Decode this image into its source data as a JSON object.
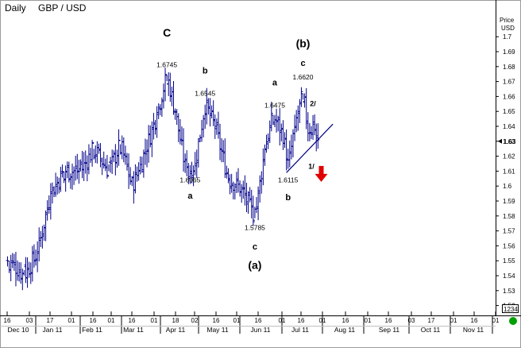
{
  "header": {
    "period": "Daily",
    "symbol": "GBP / USD"
  },
  "price_axis": {
    "title_line1": "Price",
    "title_line2": "USD",
    "last_value": "1.63",
    "bottom_box": "1234"
  },
  "colors": {
    "bars": "#00008b",
    "arrow": "#e00000",
    "status_dot": "#00a000",
    "trendline": "#000080"
  },
  "chart_data": {
    "type": "bar",
    "subtype": "ohlc",
    "ylim": [
      1.515,
      1.715
    ],
    "y_ticks": [
      "1.7",
      "1.69",
      "1.68",
      "1.67",
      "1.66",
      "1.65",
      "1.64",
      "1.63",
      "1.62",
      "1.61",
      "1.6",
      "1.59",
      "1.58",
      "1.57",
      "1.56",
      "1.55",
      "1.54",
      "1.53",
      "1.52"
    ],
    "x_day_ticks": [
      "16",
      "03",
      "17",
      "01",
      "16",
      "01",
      "16",
      "01",
      "18",
      "02",
      "16",
      "01",
      "16",
      "01",
      "16",
      "01",
      "16",
      "01",
      "16",
      "03",
      "17",
      "01",
      "16",
      "01"
    ],
    "x_month_ticks": [
      "Dec 10",
      "Jan 11",
      "Feb 11",
      "Mar 11",
      "Apr 11",
      "May 11",
      "Jun 11",
      "Jul 11",
      "Aug 11",
      "Sep 11",
      "Oct 11",
      "Nov 11"
    ],
    "price_path": [
      {
        "date": "2010-12-16",
        "close": 1.55
      },
      {
        "date": "2010-12-29",
        "close": 1.54
      },
      {
        "date": "2011-01-10",
        "close": 1.555
      },
      {
        "date": "2011-01-20",
        "close": 1.595
      },
      {
        "date": "2011-02-01",
        "close": 1.61
      },
      {
        "date": "2011-02-15",
        "close": 1.61
      },
      {
        "date": "2011-02-25",
        "close": 1.625
      },
      {
        "date": "2011-03-10",
        "close": 1.61
      },
      {
        "date": "2011-03-20",
        "close": 1.628
      },
      {
        "date": "2011-03-30",
        "close": 1.6
      },
      {
        "date": "2011-04-05",
        "close": 1.61
      },
      {
        "date": "2011-04-20",
        "close": 1.648
      },
      {
        "date": "2011-04-28",
        "close": 1.6745
      },
      {
        "date": "2011-05-05",
        "close": 1.65
      },
      {
        "date": "2011-05-16",
        "close": 1.6065
      },
      {
        "date": "2011-05-23",
        "close": 1.615
      },
      {
        "date": "2011-05-31",
        "close": 1.6545
      },
      {
        "date": "2011-06-08",
        "close": 1.64
      },
      {
        "date": "2011-06-20",
        "close": 1.605
      },
      {
        "date": "2011-06-30",
        "close": 1.598
      },
      {
        "date": "2011-07-12",
        "close": 1.5785
      },
      {
        "date": "2011-07-20",
        "close": 1.625
      },
      {
        "date": "2011-07-27",
        "close": 1.6475
      },
      {
        "date": "2011-08-05",
        "close": 1.632
      },
      {
        "date": "2011-08-09",
        "close": 1.6115
      },
      {
        "date": "2011-08-15",
        "close": 1.64
      },
      {
        "date": "2011-08-22",
        "close": 1.662
      },
      {
        "date": "2011-08-26",
        "close": 1.63
      },
      {
        "date": "2011-08-30",
        "close": 1.6475
      },
      {
        "date": "2011-09-02",
        "close": 1.625
      }
    ],
    "annotations": [
      {
        "text": "C",
        "date": "2011-04-28",
        "price": 1.7,
        "size": "large"
      },
      {
        "text": "1.6745",
        "date": "2011-04-28",
        "price": 1.6795,
        "size": "small"
      },
      {
        "text": "b",
        "date": "2011-05-31",
        "price": 1.6755,
        "size": "medium"
      },
      {
        "text": "1.6545",
        "date": "2011-05-31",
        "price": 1.6605,
        "size": "small"
      },
      {
        "text": "1.6065",
        "date": "2011-05-18",
        "price": 1.6025,
        "size": "small"
      },
      {
        "text": "a",
        "date": "2011-05-18",
        "price": 1.5915,
        "size": "medium"
      },
      {
        "text": "1.5785",
        "date": "2011-07-12",
        "price": 1.5705,
        "size": "small"
      },
      {
        "text": "c",
        "date": "2011-07-12",
        "price": 1.5575,
        "size": "medium"
      },
      {
        "text": "(a)",
        "date": "2011-07-12",
        "price": 1.5445,
        "size": "large"
      },
      {
        "text": "a",
        "date": "2011-07-28",
        "price": 1.6675,
        "size": "medium"
      },
      {
        "text": "1.6475",
        "date": "2011-07-28",
        "price": 1.6525,
        "size": "small"
      },
      {
        "text": "(b)",
        "date": "2011-08-22",
        "price": 1.693,
        "size": "large"
      },
      {
        "text": "c",
        "date": "2011-08-22",
        "price": 1.6805,
        "size": "medium"
      },
      {
        "text": "1.6620",
        "date": "2011-08-22",
        "price": 1.6715,
        "size": "small"
      },
      {
        "text": "2/",
        "date": "2011-08-30",
        "price": 1.6535,
        "size": "small-bold"
      },
      {
        "text": "1/",
        "date": "2011-08-27",
        "price": 1.6115,
        "size": "small-bold"
      },
      {
        "text": "1.6115",
        "date": "2011-08-09",
        "price": 1.6025,
        "size": "small"
      },
      {
        "text": "b",
        "date": "2011-08-09",
        "price": 1.5905,
        "size": "medium"
      }
    ],
    "trendline": {
      "from": {
        "date": "2011-08-08",
        "price": 1.609
      },
      "to": {
        "date": "2011-09-15",
        "price": 1.6415
      }
    },
    "signal_arrow": {
      "direction": "down",
      "date": "2011-09-06",
      "price": 1.6135
    }
  }
}
